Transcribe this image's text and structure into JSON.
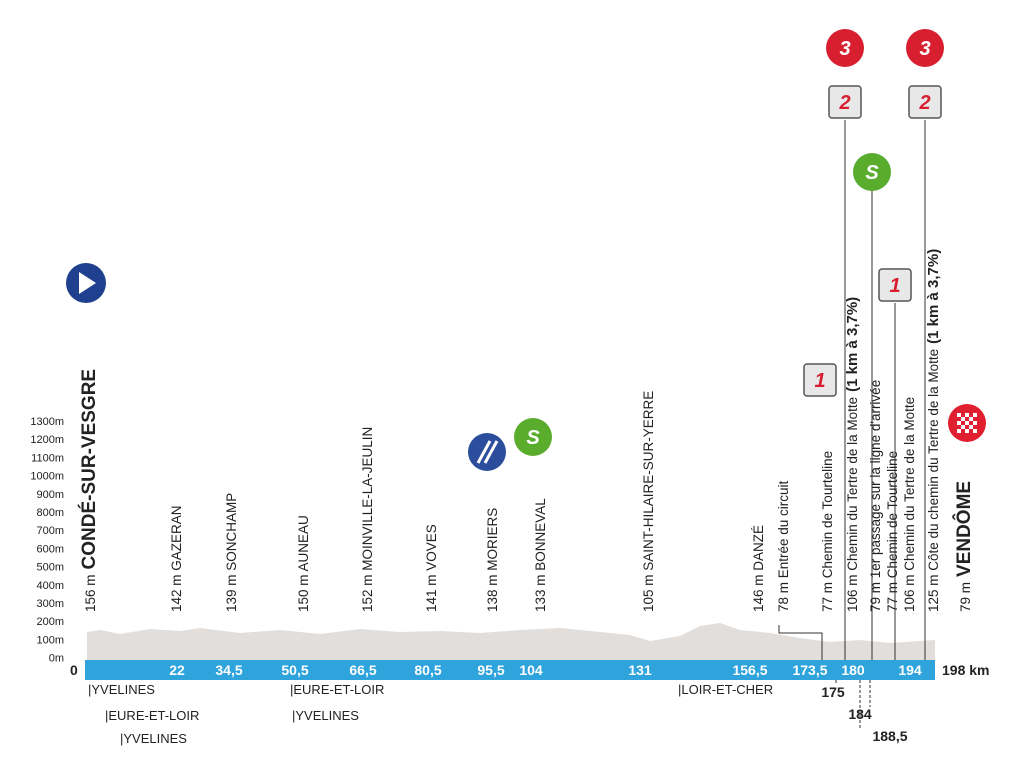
{
  "altitude_labels": [
    "1300m",
    "1200m",
    "1100m",
    "1000m",
    "900m",
    "800m",
    "700m",
    "600m",
    "500m",
    "400m",
    "300m",
    "200m",
    "100m",
    "0m"
  ],
  "start_km": "0",
  "finish_km": "198 km",
  "km_marks": [
    "22",
    "34,5",
    "50,5",
    "66,5",
    "80,5",
    "95,5",
    "104",
    "131",
    "156,5",
    "173,5",
    "180",
    "194"
  ],
  "km_marks_below": [
    "175",
    "184",
    "188,5"
  ],
  "waypoints": [
    {
      "text": "156 m",
      "bold": "CONDÉ-SUR-VESGRE"
    },
    {
      "text": "142 m GAZERAN"
    },
    {
      "text": "139 m SONCHAMP"
    },
    {
      "text": "150 m AUNEAU"
    },
    {
      "text": "152 m MOINVILLE-LA-JEULIN"
    },
    {
      "text": "141 m VOVES"
    },
    {
      "text": "138 m MORIERS"
    },
    {
      "text": "133 m BONNEVAL"
    },
    {
      "text": "105 m SAINT-HILAIRE-SUR-YERRE"
    },
    {
      "text": "146 m DANZÉ"
    },
    {
      "text": "78 m Entrée du circuit"
    },
    {
      "text": "77 m Chemin de Tourteline"
    },
    {
      "text": "106 m Chemin du Tertre de la Motte",
      "bold": "(1 km à 3,7%)"
    },
    {
      "text": "79 m 1er passage sur la ligne d'arrivée"
    },
    {
      "text": "77 m Chemin de Tourteline"
    },
    {
      "text": "106 m Chemin du Tertre de la Motte"
    },
    {
      "text": "125 m Côte du chemin du Tertre de la Motte",
      "bold": "(1 km à 3,7%)"
    },
    {
      "text": "79 m",
      "bold": "VENDÔME"
    }
  ],
  "regions": [
    "|YVELINES",
    "|EURE-ET-LOIR",
    "|YVELINES",
    "|EURE-ET-LOIR",
    "|YVELINES",
    "|LOIR-ET-CHER"
  ],
  "badges": [
    "3",
    "3",
    "2",
    "2",
    "S",
    "1",
    "1",
    "S"
  ]
}
